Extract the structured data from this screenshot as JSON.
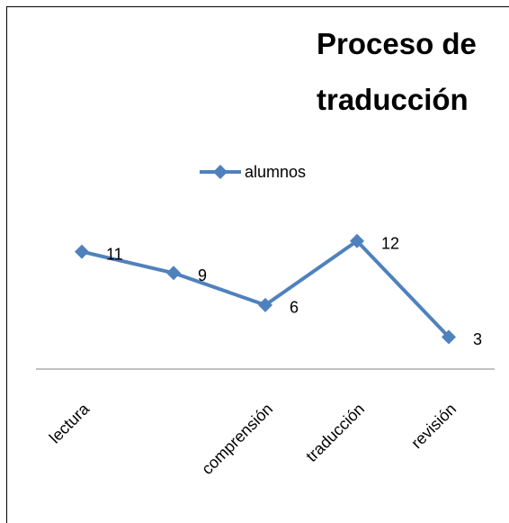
{
  "chart_data": {
    "type": "line",
    "title": "Proceso de traducción",
    "categories": [
      "lectura",
      null,
      "comprensión",
      "traducción",
      "revisión"
    ],
    "series": [
      {
        "name": "alumnos",
        "color": "#4f81bd",
        "values": [
          11,
          9,
          6,
          12,
          3
        ]
      }
    ],
    "ylim": [
      0,
      14
    ],
    "legend": "top"
  }
}
